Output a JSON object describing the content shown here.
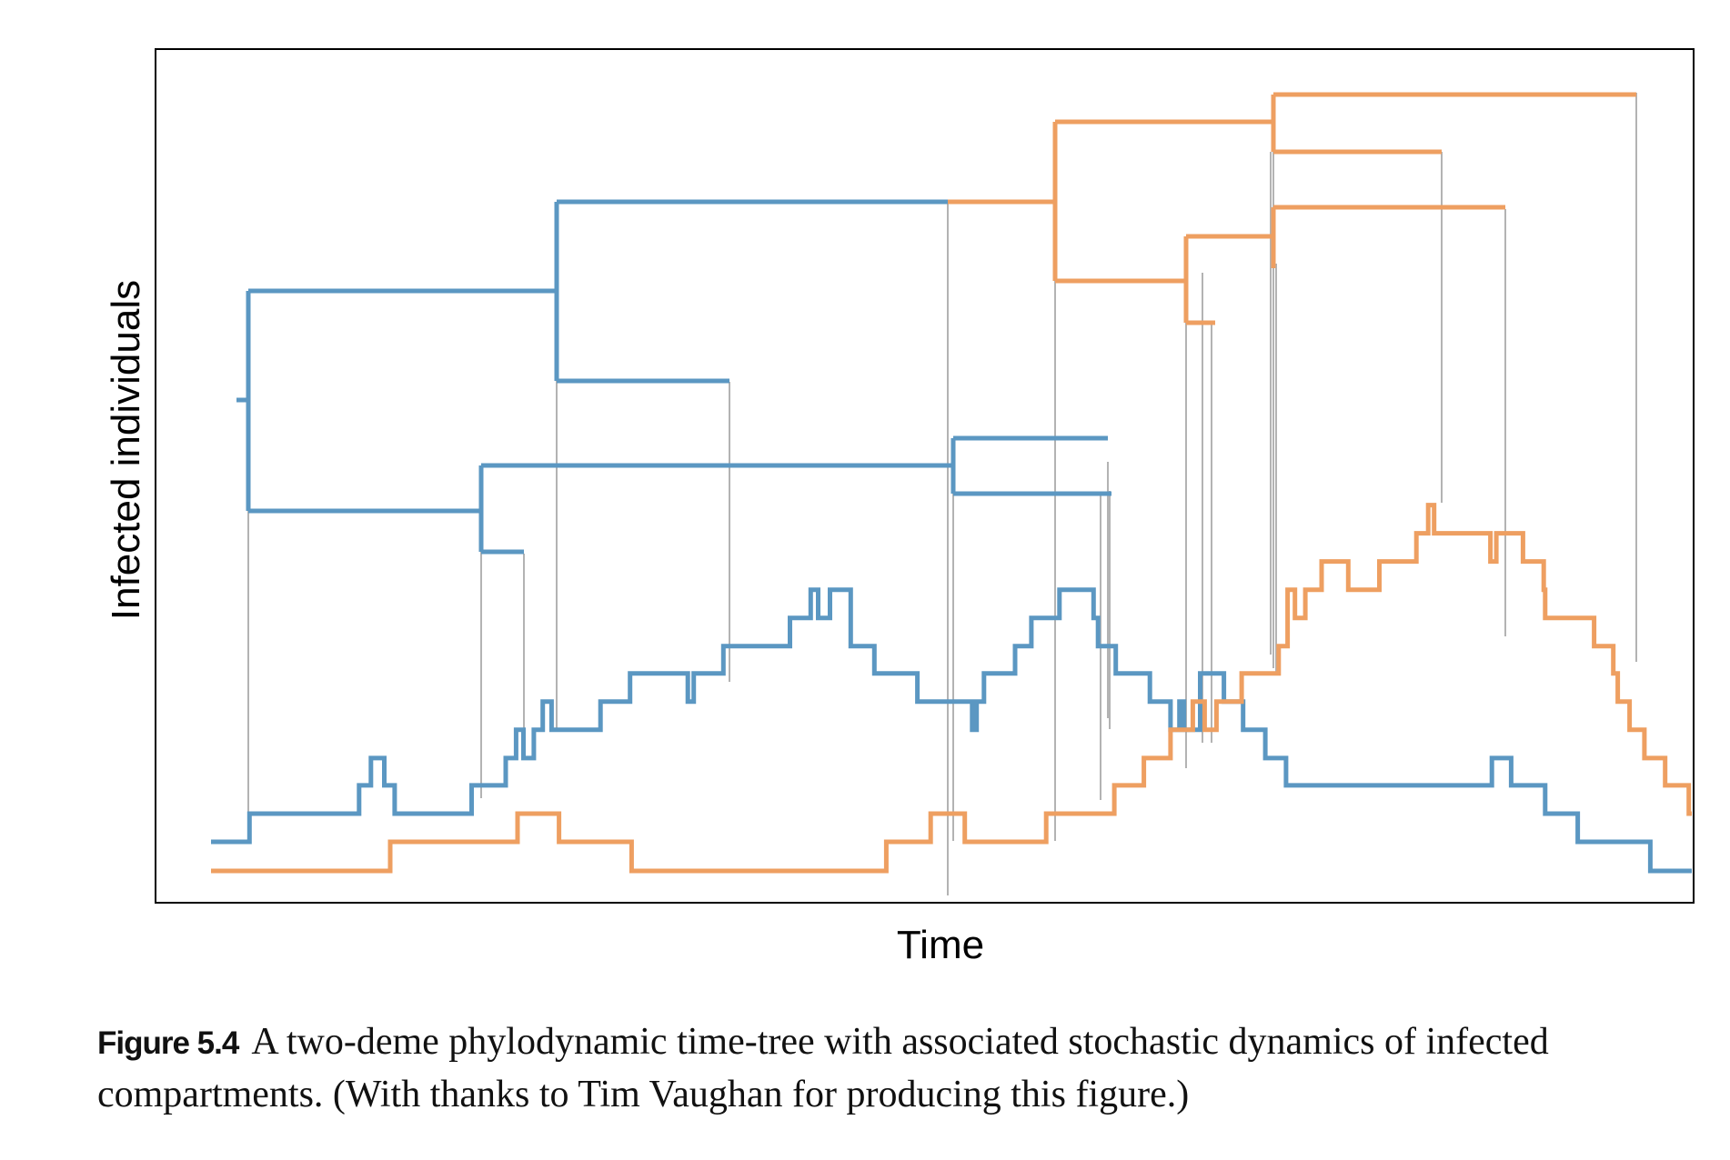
{
  "chart_data": {
    "type": "line",
    "xlabel": "Time",
    "ylabel": "Infected individuals",
    "grid": false,
    "legend": "none",
    "colors": {
      "deme_a": "#5b97c2",
      "deme_b": "#ee9f61",
      "connector": "#b3b3b3",
      "frame": "#000000"
    },
    "xlim": [
      0,
      1000
    ],
    "ylim": [
      0,
      1000
    ],
    "series": [
      {
        "values": [
          [
            0,
            33
          ],
          [
            26,
            33
          ],
          [
            26,
            65
          ],
          [
            100,
            65
          ],
          [
            100,
            97
          ],
          [
            108,
            97
          ],
          [
            108,
            128
          ],
          [
            117,
            128
          ],
          [
            117,
            97
          ],
          [
            124,
            97
          ],
          [
            124,
            65
          ],
          [
            176,
            65
          ],
          [
            176,
            97
          ],
          [
            199,
            97
          ],
          [
            199,
            128
          ],
          [
            206,
            128
          ],
          [
            206,
            160
          ],
          [
            211,
            160
          ],
          [
            211,
            128
          ],
          [
            218,
            128
          ],
          [
            218,
            160
          ],
          [
            224,
            160
          ],
          [
            224,
            192
          ],
          [
            230,
            192
          ],
          [
            230,
            160
          ],
          [
            263,
            160
          ],
          [
            263,
            192
          ],
          [
            283,
            192
          ],
          [
            283,
            224
          ],
          [
            322,
            224
          ],
          [
            322,
            192
          ],
          [
            326,
            192
          ],
          [
            326,
            224
          ],
          [
            346,
            224
          ],
          [
            346,
            255
          ],
          [
            391,
            255
          ],
          [
            391,
            287
          ],
          [
            405,
            287
          ],
          [
            405,
            319
          ],
          [
            410,
            319
          ],
          [
            410,
            287
          ],
          [
            418,
            287
          ],
          [
            418,
            319
          ],
          [
            432,
            319
          ],
          [
            432,
            255
          ],
          [
            448,
            255
          ],
          [
            448,
            224
          ],
          [
            477,
            224
          ],
          [
            477,
            192
          ],
          [
            514,
            192
          ],
          [
            514,
            160
          ],
          [
            517,
            160
          ],
          [
            517,
            192
          ],
          [
            522,
            192
          ],
          [
            522,
            224
          ],
          [
            543,
            224
          ],
          [
            543,
            255
          ],
          [
            554,
            255
          ],
          [
            554,
            287
          ],
          [
            573,
            287
          ],
          [
            573,
            319
          ],
          [
            596,
            319
          ],
          [
            596,
            287
          ],
          [
            599,
            287
          ],
          [
            599,
            255
          ],
          [
            611,
            255
          ],
          [
            611,
            224
          ],
          [
            634,
            224
          ],
          [
            634,
            192
          ],
          [
            648,
            192
          ],
          [
            648,
            160
          ],
          [
            654,
            160
          ],
          [
            654,
            192
          ],
          [
            657,
            192
          ],
          [
            657,
            160
          ],
          [
            668,
            160
          ],
          [
            668,
            224
          ],
          [
            684,
            224
          ],
          [
            684,
            192
          ],
          [
            697,
            192
          ],
          [
            697,
            160
          ],
          [
            712,
            160
          ],
          [
            712,
            128
          ],
          [
            726,
            128
          ],
          [
            726,
            97
          ],
          [
            865,
            97
          ],
          [
            865,
            128
          ],
          [
            878,
            128
          ],
          [
            878,
            97
          ],
          [
            901,
            97
          ],
          [
            901,
            65
          ],
          [
            923,
            65
          ],
          [
            923,
            33
          ],
          [
            972,
            33
          ],
          [
            972,
            0
          ],
          [
            1000,
            0
          ]
        ]
      },
      {
        "values": [
          [
            0,
            0
          ],
          [
            121,
            0
          ],
          [
            121,
            33
          ],
          [
            207,
            33
          ],
          [
            207,
            65
          ],
          [
            235,
            65
          ],
          [
            235,
            33
          ],
          [
            284,
            33
          ],
          [
            284,
            0
          ],
          [
            456,
            0
          ],
          [
            456,
            33
          ],
          [
            486,
            33
          ],
          [
            486,
            65
          ],
          [
            509,
            65
          ],
          [
            509,
            33
          ],
          [
            564,
            33
          ],
          [
            564,
            65
          ],
          [
            610,
            65
          ],
          [
            610,
            97
          ],
          [
            630,
            97
          ],
          [
            630,
            128
          ],
          [
            648,
            128
          ],
          [
            648,
            160
          ],
          [
            663,
            160
          ],
          [
            663,
            192
          ],
          [
            671,
            192
          ],
          [
            671,
            160
          ],
          [
            679,
            160
          ],
          [
            679,
            192
          ],
          [
            696,
            192
          ],
          [
            696,
            224
          ],
          [
            721,
            224
          ],
          [
            721,
            255
          ],
          [
            727,
            255
          ],
          [
            727,
            319
          ],
          [
            732,
            319
          ],
          [
            732,
            287
          ],
          [
            739,
            287
          ],
          [
            739,
            319
          ],
          [
            750,
            319
          ],
          [
            750,
            351
          ],
          [
            768,
            351
          ],
          [
            768,
            319
          ],
          [
            789,
            319
          ],
          [
            789,
            351
          ],
          [
            814,
            351
          ],
          [
            814,
            383
          ],
          [
            822,
            383
          ],
          [
            822,
            415
          ],
          [
            826,
            415
          ],
          [
            826,
            383
          ],
          [
            864,
            383
          ],
          [
            864,
            351
          ],
          [
            868,
            351
          ],
          [
            868,
            383
          ],
          [
            886,
            383
          ],
          [
            886,
            351
          ],
          [
            900,
            351
          ],
          [
            900,
            319
          ],
          [
            901,
            319
          ],
          [
            901,
            287
          ],
          [
            934,
            287
          ],
          [
            934,
            255
          ],
          [
            947,
            255
          ],
          [
            947,
            224
          ],
          [
            950,
            224
          ],
          [
            950,
            192
          ],
          [
            958,
            192
          ],
          [
            958,
            160
          ],
          [
            968,
            160
          ],
          [
            968,
            128
          ],
          [
            982,
            128
          ],
          [
            982,
            97
          ],
          [
            998,
            97
          ],
          [
            998,
            65
          ],
          [
            1000,
            65
          ]
        ]
      }
    ]
  },
  "caption": {
    "label": "Figure 5.4",
    "text": "A two-deme phylodynamic time-tree with associated stochastic dynamics of infected compartments. (With thanks to Tim Vaughan for producing this figure.)"
  }
}
